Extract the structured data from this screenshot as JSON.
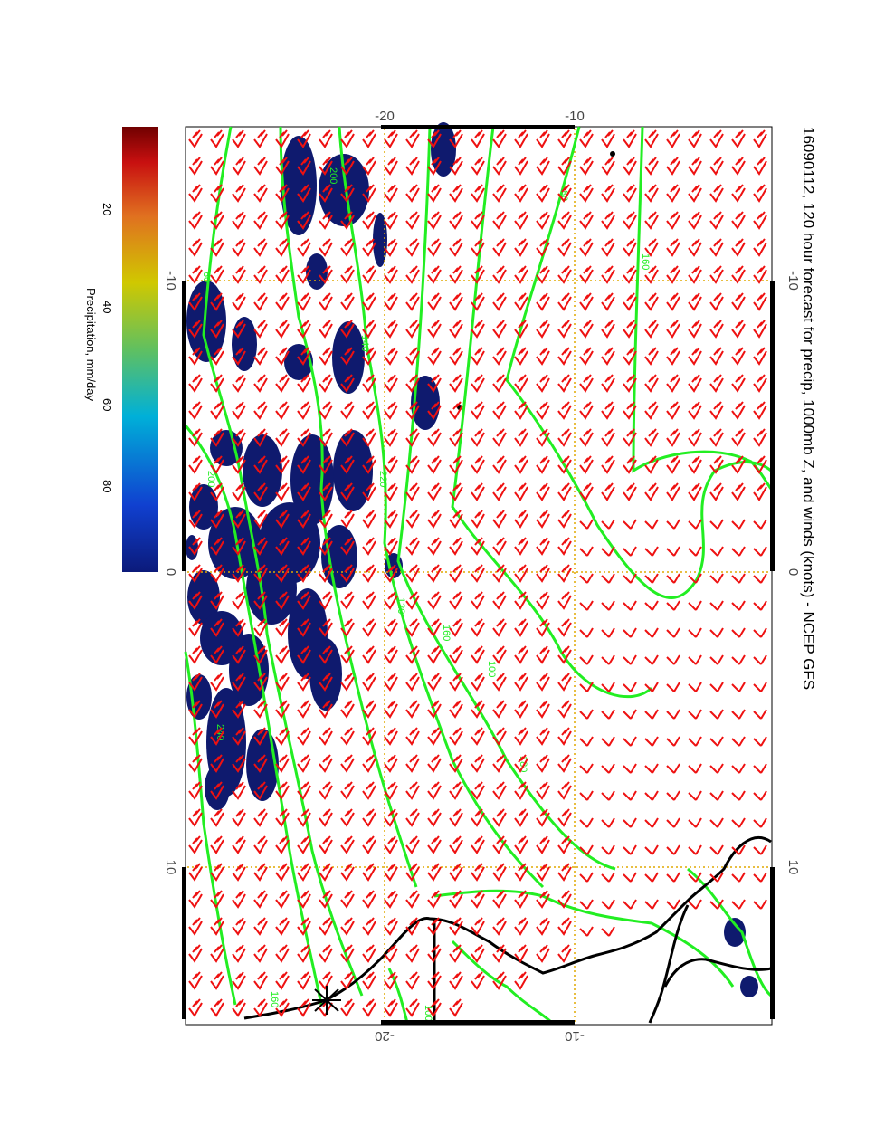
{
  "title": "16090112, 120 hour forecast for precip, 1000mb Z, and winds (knots) - NCEP GFS",
  "colorbar": {
    "label": "Precipitation, mm/day",
    "ticks": [
      "20",
      "40",
      "60",
      "80"
    ],
    "colors": [
      "#0b1a7a",
      "#1040d0",
      "#00b0d8",
      "#60c060",
      "#d0c800",
      "#e07020",
      "#c81010",
      "#700000"
    ]
  },
  "map": {
    "lon_ticks_top": [
      "-20",
      "-10"
    ],
    "lon_ticks_bottom": [
      "-20",
      "-10"
    ],
    "lat_ticks_left": [
      "-10",
      "0",
      "10"
    ],
    "lat_ticks_right": [
      "-10",
      "0",
      "10"
    ],
    "contour_labels": [
      "80",
      "160",
      "200",
      "140",
      "220",
      "160",
      "100",
      "180",
      "60",
      "120",
      "200",
      "240",
      "160",
      "100"
    ],
    "colors": {
      "contour": "#22ee22",
      "wind_barb": "#ee1111",
      "precip": "#0f1a6e",
      "coast": "#000000",
      "grid": "#e0a800"
    },
    "icons": [
      "wind-barb-icon",
      "star-marker-icon"
    ]
  }
}
